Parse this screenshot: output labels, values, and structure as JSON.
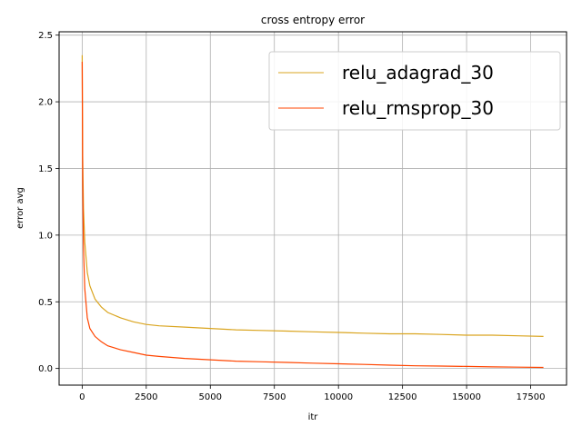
{
  "chart_data": {
    "type": "line",
    "title": "cross entropy error",
    "xlabel": "itr",
    "ylabel": "error avg",
    "xlim": [
      -900,
      18900
    ],
    "ylim": [
      -0.125,
      2.525
    ],
    "xticks": [
      0,
      2500,
      5000,
      7500,
      10000,
      12500,
      15000,
      17500
    ],
    "xtick_labels": [
      "0",
      "2500",
      "5000",
      "7500",
      "10000",
      "12500",
      "15000",
      "17500"
    ],
    "yticks": [
      0.0,
      0.5,
      1.0,
      1.5,
      2.0,
      2.5
    ],
    "ytick_labels": [
      "0.0",
      "0.5",
      "1.0",
      "1.5",
      "2.0",
      "2.5"
    ],
    "grid": true,
    "legend_position": "top-right",
    "series": [
      {
        "name": "relu_adagrad_30",
        "color": "#daa520",
        "x": [
          0,
          20,
          50,
          100,
          200,
          300,
          500,
          750,
          1000,
          1500,
          2000,
          2500,
          3000,
          4000,
          5000,
          6000,
          7000,
          8000,
          9000,
          10000,
          11000,
          12000,
          13000,
          14000,
          15000,
          16000,
          17000,
          18000
        ],
        "values": [
          2.35,
          1.6,
          1.2,
          0.95,
          0.72,
          0.62,
          0.52,
          0.46,
          0.42,
          0.38,
          0.35,
          0.33,
          0.32,
          0.31,
          0.3,
          0.29,
          0.285,
          0.28,
          0.275,
          0.27,
          0.265,
          0.26,
          0.26,
          0.255,
          0.25,
          0.25,
          0.245,
          0.24
        ]
      },
      {
        "name": "relu_rmsprop_30",
        "color": "#ff4500",
        "x": [
          0,
          20,
          50,
          100,
          200,
          300,
          500,
          750,
          1000,
          1500,
          2000,
          2500,
          3000,
          4000,
          5000,
          6000,
          7000,
          8000,
          9000,
          10000,
          11000,
          12000,
          13000,
          14000,
          15000,
          16000,
          17000,
          18000
        ],
        "values": [
          2.3,
          1.4,
          0.9,
          0.6,
          0.38,
          0.3,
          0.24,
          0.2,
          0.17,
          0.14,
          0.12,
          0.1,
          0.09,
          0.075,
          0.065,
          0.055,
          0.05,
          0.045,
          0.04,
          0.035,
          0.03,
          0.025,
          0.02,
          0.018,
          0.015,
          0.012,
          0.01,
          0.008
        ]
      }
    ]
  }
}
